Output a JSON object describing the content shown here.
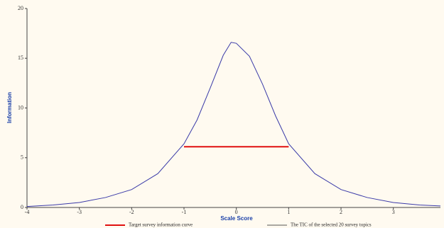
{
  "chart_data": {
    "type": "line",
    "x_label": "Scale Score",
    "y_label": "Information",
    "xlim": [
      -4,
      3.9
    ],
    "ylim": [
      0,
      20
    ],
    "xticks": [
      -4,
      -3,
      -2,
      -1,
      0,
      1,
      2,
      3
    ],
    "yticks": [
      0,
      5,
      10,
      15,
      20
    ],
    "series": [
      {
        "name": "Target survey information curve",
        "color": "#e01010",
        "legend_color": "#e01010",
        "x": [
          -1,
          1
        ],
        "values": [
          6.1,
          6.1
        ]
      },
      {
        "name": "The TIC of the selected 20 survey topics",
        "color": "#3a3aa8",
        "legend_color": "#555555",
        "x": [
          -4,
          -3.5,
          -3,
          -2.5,
          -2,
          -1.5,
          -1,
          -0.75,
          -0.5,
          -0.25,
          -0.1,
          0,
          0.25,
          0.5,
          0.75,
          1,
          1.5,
          2,
          2.5,
          3,
          3.5,
          3.9
        ],
        "values": [
          0.1,
          0.25,
          0.5,
          1.0,
          1.8,
          3.4,
          6.4,
          8.8,
          12.0,
          15.3,
          16.6,
          16.5,
          15.2,
          12.4,
          9.2,
          6.4,
          3.4,
          1.8,
          1.0,
          0.5,
          0.25,
          0.15
        ]
      }
    ]
  }
}
